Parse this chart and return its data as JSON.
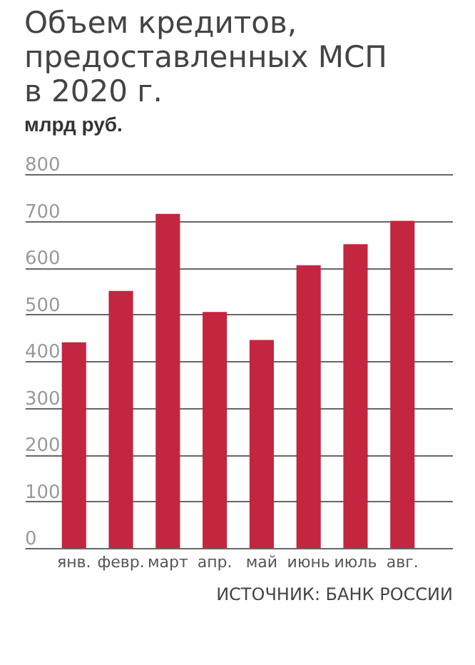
{
  "chart_data": {
    "type": "bar",
    "title": "Объем кредитов, предоставленных МСП в 2020 г.",
    "ylabel": "млрд руб.",
    "annotations": [
      "ИСТОЧНИК: БАНК РОССИИ"
    ],
    "categories": [
      "янв.",
      "февр.",
      "март",
      "апр.",
      "май",
      "июнь",
      "июль",
      "авг."
    ],
    "values": [
      440,
      550,
      715,
      505,
      445,
      605,
      650,
      700
    ],
    "color": "#c4253f",
    "ylim": [
      0,
      800
    ],
    "yticks": [
      0,
      100,
      200,
      300,
      400,
      500,
      600,
      700,
      800
    ],
    "grid": true
  }
}
